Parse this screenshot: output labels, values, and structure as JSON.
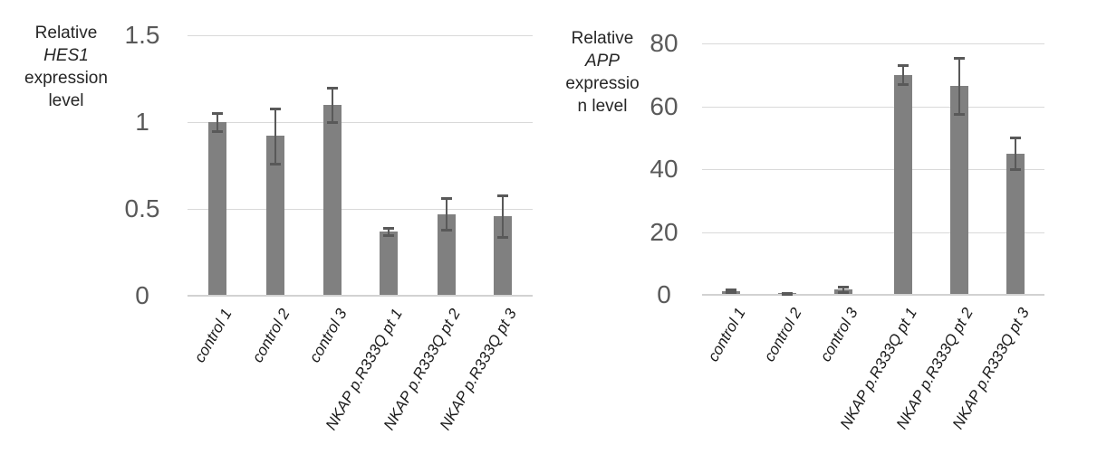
{
  "figure": {
    "background": "#ffffff",
    "colors": {
      "bar": "#808080",
      "error_bar": "#595959",
      "gridline": "#d9d9d9",
      "axis_line": "#d2d2d2",
      "tick_label": "#595959",
      "axis_title": "#262626",
      "category_label": "#1a1a1a"
    }
  },
  "chart_data": [
    {
      "type": "bar",
      "title": "",
      "ylabel": "Relative HES1 expression level",
      "ylabel_lines": [
        {
          "text": "Relative",
          "italic": false
        },
        {
          "text": "HES1",
          "italic": true
        },
        {
          "text": "expression",
          "italic": false
        },
        {
          "text": "level",
          "italic": false
        }
      ],
      "xlabel": "",
      "categories": [
        "control 1",
        "control 2",
        "control 3",
        "NKAP p.R333Q pt 1",
        "NKAP p.R333Q pt 2",
        "NKAP p.R333Q pt 3"
      ],
      "values": [
        1.0,
        0.92,
        1.1,
        0.37,
        0.47,
        0.46
      ],
      "errors": [
        0.05,
        0.16,
        0.1,
        0.02,
        0.09,
        0.12
      ],
      "ylim": [
        0,
        1.5
      ],
      "ytick_values": [
        0,
        0.5,
        1,
        1.5
      ],
      "ytick_labels": [
        "0",
        "0.5",
        "1",
        "1.5"
      ],
      "grid": true,
      "legend": "none"
    },
    {
      "type": "bar",
      "title": "",
      "ylabel": "Relative APP expression level",
      "ylabel_lines": [
        {
          "text": "Relative",
          "italic": false
        },
        {
          "text": "APP",
          "italic": true
        },
        {
          "text": "expressio",
          "italic": false
        },
        {
          "text": "n level",
          "italic": false
        }
      ],
      "xlabel": "",
      "categories": [
        "control 1",
        "control 2",
        "control 3",
        "NKAP p.R333Q pt 1",
        "NKAP p.R333Q pt 2",
        "NKAP p.R333Q pt 3"
      ],
      "values": [
        1.2,
        0.5,
        1.8,
        70,
        66.5,
        45
      ],
      "errors": [
        0.4,
        0.2,
        0.8,
        3,
        9,
        5
      ],
      "ylim": [
        0,
        80
      ],
      "ytick_values": [
        0,
        20,
        40,
        60,
        80
      ],
      "ytick_labels": [
        "0",
        "20",
        "40",
        "60",
        "80"
      ],
      "grid": true,
      "legend": "none"
    }
  ]
}
